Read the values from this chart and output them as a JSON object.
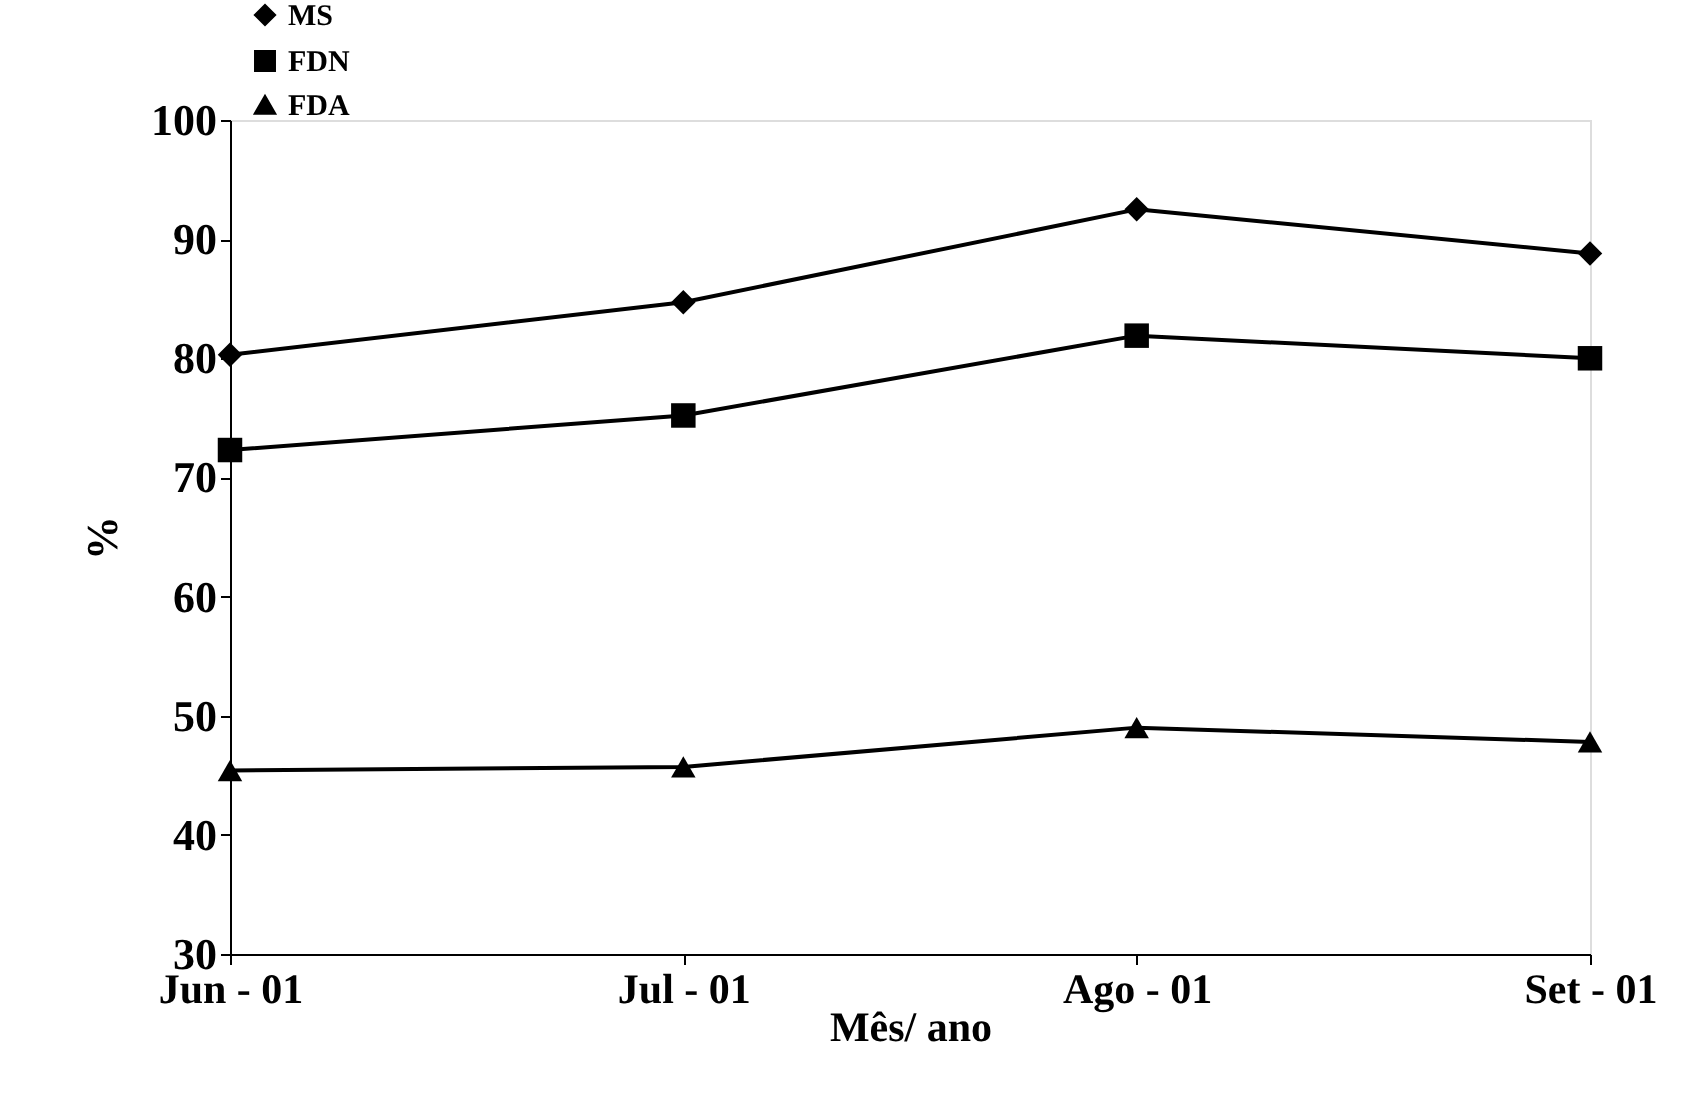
{
  "chart_data": {
    "type": "line",
    "categories": [
      "Jun - 01",
      "Jul - 01",
      "Ago - 01",
      "Set - 01"
    ],
    "xlabel": "Mês/ ano",
    "ylabel": "%",
    "ylim": [
      30,
      100
    ],
    "yticks": [
      30,
      40,
      50,
      60,
      70,
      80,
      90,
      100
    ],
    "grid": false,
    "legend": "top left",
    "line_style": "solid",
    "series": [
      {
        "name": "MS",
        "color": "#000000",
        "marker": "diamond",
        "values": [
          80.3,
          84.7,
          92.5,
          88.8
        ]
      },
      {
        "name": "FDN",
        "color": "#000000",
        "marker": "square",
        "values": [
          72.3,
          75.2,
          81.9,
          80.0
        ]
      },
      {
        "name": "FDA",
        "color": "#000000",
        "marker": "triangle",
        "values": [
          45.4,
          45.7,
          49.0,
          47.8
        ]
      }
    ]
  }
}
